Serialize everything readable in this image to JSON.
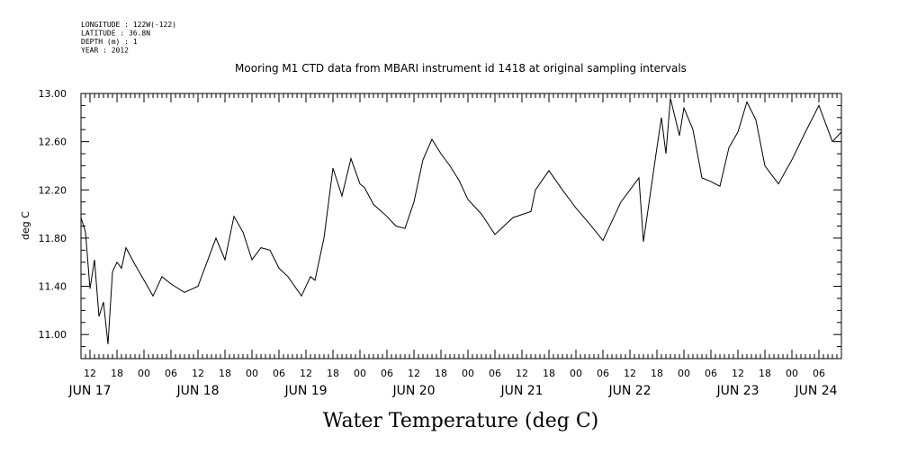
{
  "header": {
    "lines": [
      "LONGITUDE : 122W(-122)",
      "LATITUDE : 36.8N",
      "DEPTH (m) : 1",
      "YEAR : 2012"
    ]
  },
  "chart_data": {
    "type": "line",
    "title": "Mooring M1 CTD data from MBARI instrument id 1418 at original sampling intervals",
    "xlabel": "Water Temperature (deg C)",
    "ylabel": "deg C",
    "ylim": [
      10.8,
      13.0
    ],
    "yticks": [
      11.0,
      11.4,
      11.8,
      12.2,
      12.6,
      13.0
    ],
    "ytick_labels": [
      "11.00",
      "11.40",
      "11.80",
      "12.20",
      "12.60",
      "13.00"
    ],
    "xlim_hours_label": "Jun 17 10:00 to Jun 24 11:00",
    "x_hour_ticks": [
      "12",
      "18",
      "00",
      "06",
      "12",
      "18",
      "00",
      "06",
      "12",
      "18",
      "00",
      "06",
      "12",
      "18",
      "00",
      "06",
      "12",
      "18",
      "00",
      "06",
      "12",
      "18",
      "00",
      "06",
      "12",
      "18",
      "00",
      "06"
    ],
    "x_day_labels": [
      "JUN 17",
      "JUN 18",
      "JUN 19",
      "JUN 20",
      "JUN 21",
      "JUN 22",
      "JUN 23",
      "JUN 24"
    ],
    "grid": false,
    "series": [
      {
        "color": "#000000",
        "x": [
          "Jun 17 10:00",
          "Jun 17 11:00",
          "Jun 17 12:00",
          "Jun 17 13:00",
          "Jun 17 14:00",
          "Jun 17 15:00",
          "Jun 17 16:00",
          "Jun 17 17:00",
          "Jun 17 18:00",
          "Jun 17 19:00",
          "Jun 17 20:00",
          "Jun 17 22:00",
          "Jun 18 00:00",
          "Jun 18 02:00",
          "Jun 18 04:00",
          "Jun 18 06:00",
          "Jun 18 09:00",
          "Jun 18 12:00",
          "Jun 18 14:00",
          "Jun 18 16:00",
          "Jun 18 18:00",
          "Jun 18 20:00",
          "Jun 18 22:00",
          "Jun 19 00:00",
          "Jun 19 02:00",
          "Jun 19 04:00",
          "Jun 19 06:00",
          "Jun 19 08:00",
          "Jun 19 11:00",
          "Jun 19 13:00",
          "Jun 19 14:00",
          "Jun 19 16:00",
          "Jun 19 18:00",
          "Jun 19 20:00",
          "Jun 19 22:00",
          "Jun 20 00:00",
          "Jun 20 01:00",
          "Jun 20 03:00",
          "Jun 20 06:00",
          "Jun 20 08:00",
          "Jun 20 10:00",
          "Jun 20 12:00",
          "Jun 20 14:00",
          "Jun 20 16:00",
          "Jun 20 18:00",
          "Jun 20 20:00",
          "Jun 20 22:00",
          "Jun 21 00:00",
          "Jun 21 03:00",
          "Jun 21 06:00",
          "Jun 21 10:00",
          "Jun 21 14:00",
          "Jun 21 15:00",
          "Jun 21 18:00",
          "Jun 21 21:00",
          "Jun 22 00:00",
          "Jun 22 03:00",
          "Jun 22 06:00",
          "Jun 22 10:00",
          "Jun 22 14:00",
          "Jun 22 15:00",
          "Jun 22 18:00",
          "Jun 22 19:00",
          "Jun 22 20:00",
          "Jun 22 21:00",
          "Jun 22 23:00",
          "Jun 23 00:00",
          "Jun 23 02:00",
          "Jun 23 04:00",
          "Jun 23 06:00",
          "Jun 23 08:00",
          "Jun 23 10:00",
          "Jun 23 12:00",
          "Jun 23 14:00",
          "Jun 23 16:00",
          "Jun 23 18:00",
          "Jun 23 21:00",
          "Jun 24 00:00",
          "Jun 24 03:00",
          "Jun 24 06:00",
          "Jun 24 09:00",
          "Jun 24 11:00"
        ],
        "values": [
          11.97,
          11.85,
          11.38,
          11.62,
          11.15,
          11.27,
          10.92,
          11.52,
          11.6,
          11.55,
          11.72,
          11.58,
          11.45,
          11.32,
          11.48,
          11.42,
          11.35,
          11.4,
          11.6,
          11.8,
          11.62,
          11.98,
          11.85,
          11.62,
          11.72,
          11.7,
          11.55,
          11.48,
          11.32,
          11.48,
          11.45,
          11.8,
          12.38,
          12.15,
          12.46,
          12.25,
          12.22,
          12.08,
          11.98,
          11.9,
          11.88,
          12.1,
          12.45,
          12.62,
          12.5,
          12.4,
          12.28,
          12.12,
          12.0,
          11.83,
          11.97,
          12.02,
          12.2,
          12.36,
          12.2,
          12.05,
          11.92,
          11.78,
          12.1,
          12.3,
          11.77,
          12.55,
          12.8,
          12.5,
          12.96,
          12.65,
          12.88,
          12.7,
          12.3,
          12.27,
          12.23,
          12.55,
          12.68,
          12.93,
          12.78,
          12.4,
          12.25,
          12.45,
          12.68,
          12.9,
          12.6,
          12.68
        ]
      }
    ]
  }
}
